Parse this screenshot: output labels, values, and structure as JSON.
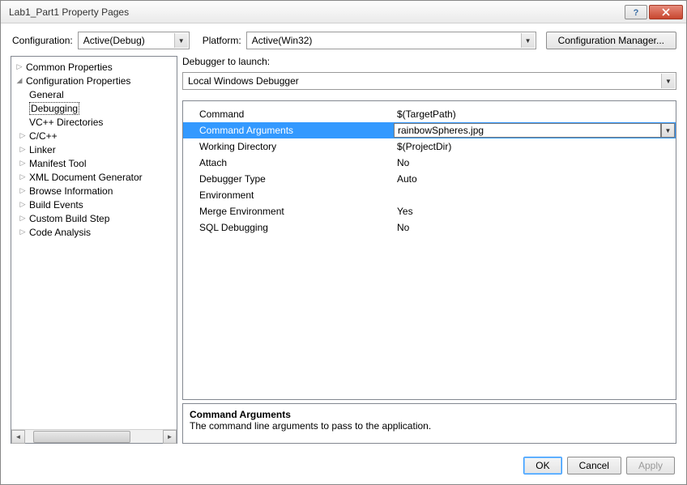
{
  "window": {
    "title": "Lab1_Part1 Property Pages"
  },
  "configRow": {
    "configLabel": "Configuration:",
    "configValue": "Active(Debug)",
    "platformLabel": "Platform:",
    "platformValue": "Active(Win32)",
    "managerLabel": "Configuration Manager..."
  },
  "tree": {
    "items": [
      {
        "label": "Common Properties",
        "level": 1,
        "expander": "▷",
        "selected": false
      },
      {
        "label": "Configuration Properties",
        "level": 1,
        "expander": "◢",
        "selected": false
      },
      {
        "label": "General",
        "level": 2,
        "expander": "",
        "selected": false
      },
      {
        "label": "Debugging",
        "level": 2,
        "expander": "",
        "selected": true
      },
      {
        "label": "VC++ Directories",
        "level": 2,
        "expander": "",
        "selected": false
      },
      {
        "label": "C/C++",
        "level": 2,
        "expander": "▷",
        "selected": false
      },
      {
        "label": "Linker",
        "level": 2,
        "expander": "▷",
        "selected": false
      },
      {
        "label": "Manifest Tool",
        "level": 2,
        "expander": "▷",
        "selected": false
      },
      {
        "label": "XML Document Generator",
        "level": 2,
        "expander": "▷",
        "selected": false
      },
      {
        "label": "Browse Information",
        "level": 2,
        "expander": "▷",
        "selected": false
      },
      {
        "label": "Build Events",
        "level": 2,
        "expander": "▷",
        "selected": false
      },
      {
        "label": "Custom Build Step",
        "level": 2,
        "expander": "▷",
        "selected": false
      },
      {
        "label": "Code Analysis",
        "level": 2,
        "expander": "▷",
        "selected": false
      }
    ]
  },
  "launch": {
    "label": "Debugger to launch:",
    "value": "Local Windows Debugger"
  },
  "props": {
    "rows": [
      {
        "name": "Command",
        "value": "$(TargetPath)",
        "selected": false
      },
      {
        "name": "Command Arguments",
        "value": "rainbowSpheres.jpg",
        "selected": true
      },
      {
        "name": "Working Directory",
        "value": "$(ProjectDir)",
        "selected": false
      },
      {
        "name": "Attach",
        "value": "No",
        "selected": false
      },
      {
        "name": "Debugger Type",
        "value": "Auto",
        "selected": false
      },
      {
        "name": "Environment",
        "value": "",
        "selected": false
      },
      {
        "name": "Merge Environment",
        "value": "Yes",
        "selected": false
      },
      {
        "name": "SQL Debugging",
        "value": "No",
        "selected": false
      }
    ]
  },
  "desc": {
    "title": "Command Arguments",
    "text": "The command line arguments to pass to the application."
  },
  "footer": {
    "ok": "OK",
    "cancel": "Cancel",
    "apply": "Apply"
  },
  "style": {
    "selectionColor": "#3399ff",
    "borderColor": "#828790"
  }
}
